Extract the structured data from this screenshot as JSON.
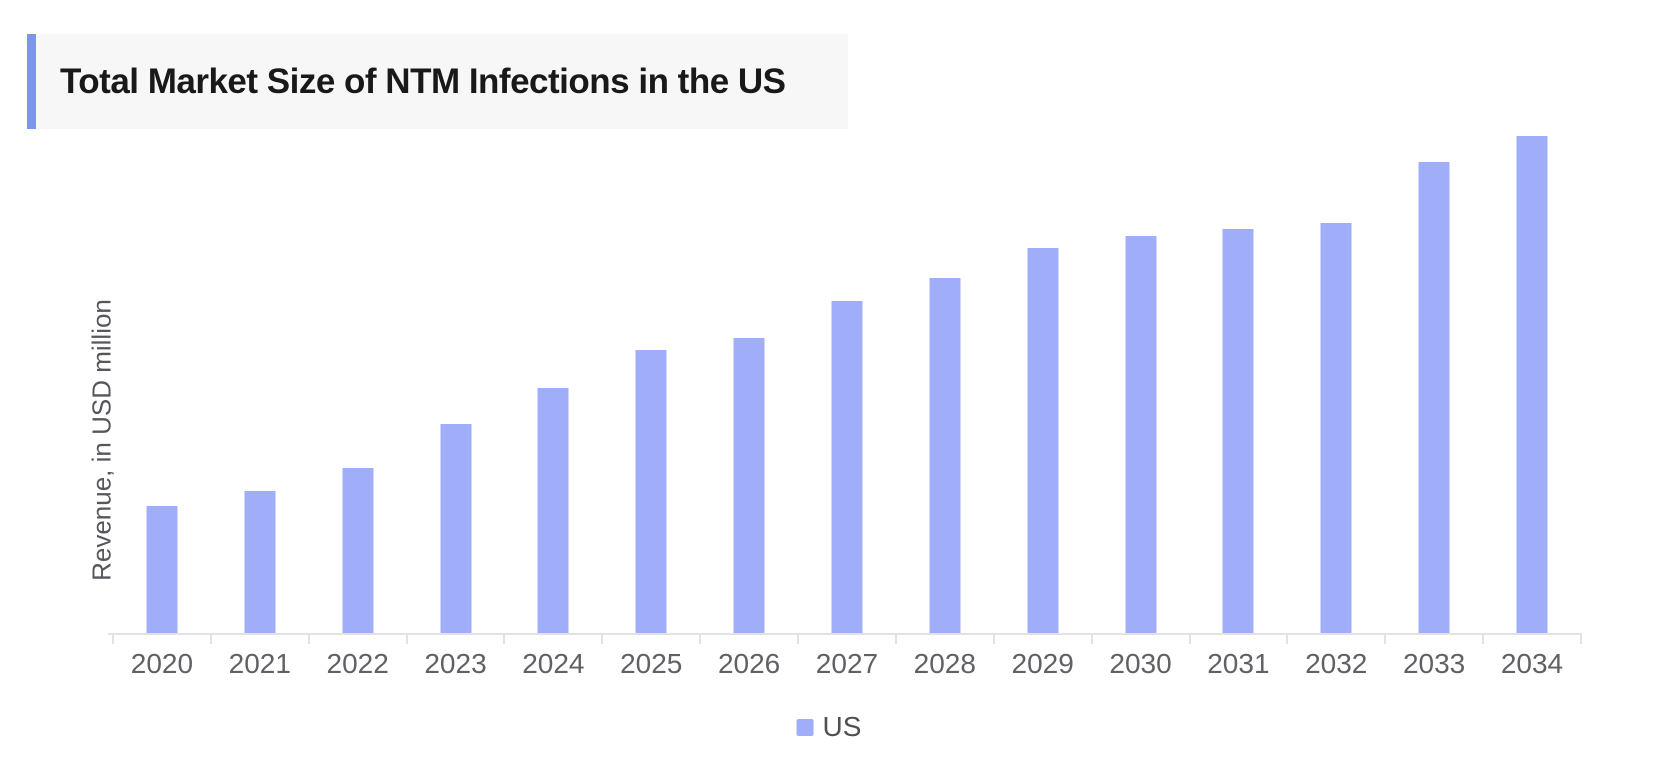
{
  "title_block": {
    "title": "Total Market Size of NTM Infections in the US",
    "accent_color": "#7D96ED",
    "background_color": "#F7F7F8",
    "text_color": "#191919"
  },
  "chart_data": {
    "type": "bar",
    "title": "Total Market Size of NTM Infections in the US",
    "xlabel": "",
    "ylabel": "Revenue, in USD million",
    "categories": [
      "2020",
      "2021",
      "2022",
      "2023",
      "2024",
      "2025",
      "2026",
      "2027",
      "2028",
      "2029",
      "2030",
      "2031",
      "2032",
      "2033",
      "2034"
    ],
    "series": [
      {
        "name": "US",
        "values_relative_pct_of_2034": [
          25.7,
          28.7,
          33.3,
          42.2,
          49.4,
          57.0,
          59.4,
          66.9,
          71.5,
          77.5,
          79.9,
          81.3,
          82.5,
          94.8,
          100.0
        ]
      }
    ],
    "y_axis_numeric_labels_visible": false,
    "ylim_note": "y-axis has no numeric tick labels; values are relative bar heights (percent of tallest 2034 bar)",
    "grid": false,
    "legend_position": "bottom-center",
    "bar_color": "#A0AEFA",
    "axis_line_color": "#E2E2E6",
    "tick_label_color": "#5F6164",
    "ylabel_color": "#55575B",
    "legend_label_color": "#4E5053"
  }
}
